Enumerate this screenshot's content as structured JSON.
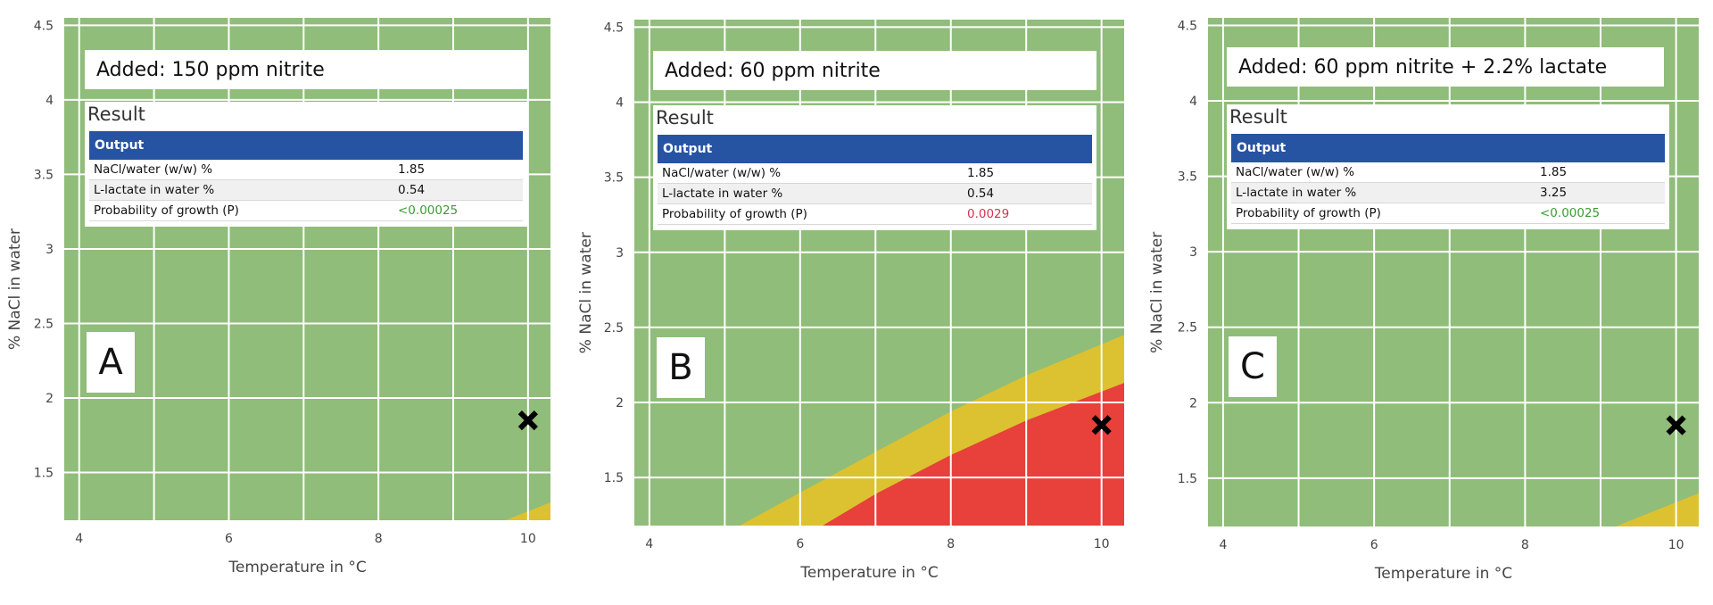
{
  "colors": {
    "safe_zone": "#90bd7a",
    "transition_zone": "#dcc230",
    "growth_zone": "#e8403b",
    "grid": "#ffffff",
    "output_header": "#2753a3",
    "probability_low": "#3e9b35",
    "probability_high": "#d43350",
    "marker": "#000000"
  },
  "shared": {
    "xlabel": "Temperature in °C",
    "ylabel": "% NaCl in water",
    "result_title": "Result",
    "output_header": "Output",
    "row_labels": [
      "NaCl/water (w/w) %",
      "L-lactate in water %",
      "Probability of growth (P)"
    ]
  },
  "chart_data": [
    {
      "type": "area",
      "panel_label": "A",
      "title": "Added: 150 ppm nitrite",
      "xlabel": "Temperature in °C",
      "ylabel": "% NaCl in water",
      "xlim": [
        3.8,
        10.3
      ],
      "ylim": [
        1.18,
        4.55
      ],
      "x_ticks": [
        4,
        6,
        8,
        10
      ],
      "y_ticks": [
        1.5,
        2,
        2.5,
        3,
        3.5,
        4,
        4.5
      ],
      "grid": true,
      "regions": [
        {
          "name": "growth boundary (yellow)",
          "points": [
            [
              9.7,
              1.18
            ],
            [
              10.3,
              1.3
            ]
          ]
        },
        {
          "name": "growth (red)",
          "points": []
        }
      ],
      "marker": {
        "x": 10,
        "y": 1.85,
        "symbol": "x"
      },
      "output": {
        "nacl": "1.85",
        "lactate": "0.54",
        "probability": "<0.00025",
        "probability_status": "low"
      }
    },
    {
      "type": "area",
      "panel_label": "B",
      "title": "Added: 60 ppm nitrite",
      "xlabel": "Temperature in °C",
      "ylabel": "% NaCl in water",
      "xlim": [
        3.8,
        10.3
      ],
      "ylim": [
        1.18,
        4.55
      ],
      "x_ticks": [
        4,
        6,
        8,
        10
      ],
      "y_ticks": [
        1.5,
        2,
        2.5,
        3,
        3.5,
        4,
        4.5
      ],
      "grid": true,
      "regions": [
        {
          "name": "growth boundary (yellow)",
          "points": [
            [
              5.2,
              1.18
            ],
            [
              6,
              1.4
            ],
            [
              7,
              1.67
            ],
            [
              8,
              1.94
            ],
            [
              9,
              2.18
            ],
            [
              10.3,
              2.45
            ]
          ]
        },
        {
          "name": "growth (red)",
          "points": [
            [
              6.3,
              1.18
            ],
            [
              7,
              1.39
            ],
            [
              8,
              1.65
            ],
            [
              9,
              1.88
            ],
            [
              10.3,
              2.13
            ]
          ]
        }
      ],
      "marker": {
        "x": 10,
        "y": 1.85,
        "symbol": "x"
      },
      "output": {
        "nacl": "1.85",
        "lactate": "0.54",
        "probability": "0.0029",
        "probability_status": "high"
      }
    },
    {
      "type": "area",
      "panel_label": "C",
      "title": "Added: 60 ppm nitrite + 2.2% lactate",
      "xlabel": "Temperature in °C",
      "ylabel": "% NaCl in water",
      "xlim": [
        3.8,
        10.3
      ],
      "ylim": [
        1.18,
        4.55
      ],
      "x_ticks": [
        4,
        6,
        8,
        10
      ],
      "y_ticks": [
        1.5,
        2,
        2.5,
        3,
        3.5,
        4,
        4.5
      ],
      "grid": true,
      "regions": [
        {
          "name": "growth boundary (yellow)",
          "points": [
            [
              9.2,
              1.18
            ],
            [
              10.3,
              1.4
            ]
          ]
        },
        {
          "name": "growth (red)",
          "points": []
        }
      ],
      "marker": {
        "x": 10,
        "y": 1.85,
        "symbol": "x"
      },
      "output": {
        "nacl": "1.85",
        "lactate": "3.25",
        "probability": "<0.00025",
        "probability_status": "low"
      }
    }
  ]
}
